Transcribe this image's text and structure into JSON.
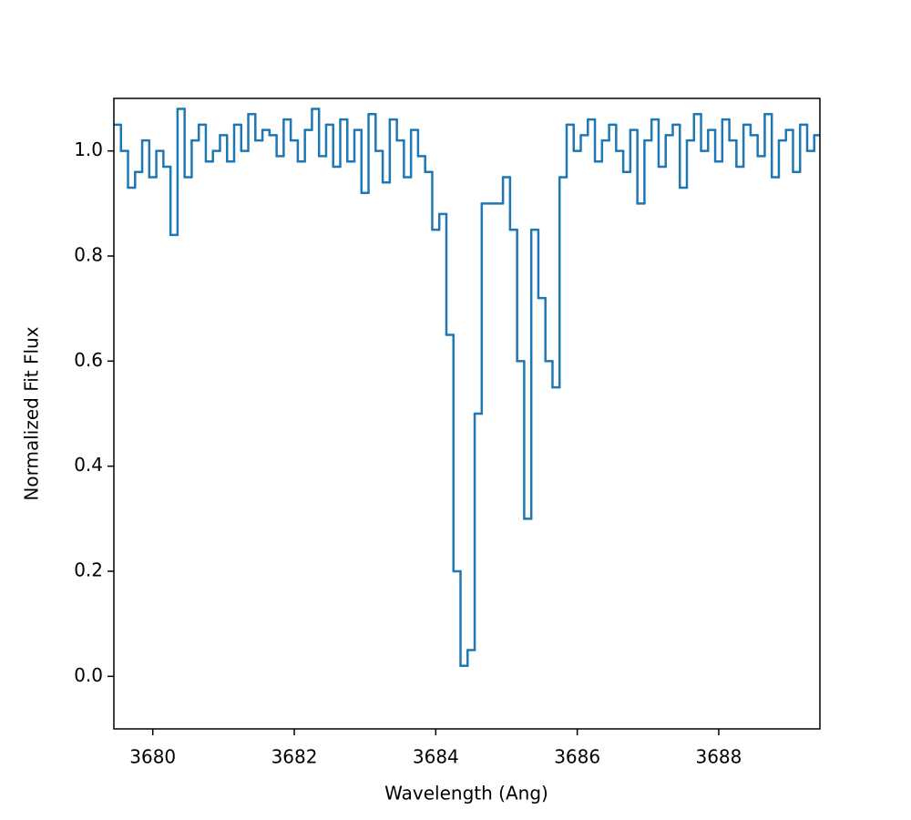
{
  "chart_data": {
    "type": "step",
    "xlabel": "Wavelength (Ang)",
    "ylabel": "Normalized Fit Flux",
    "x": [
      3679.5,
      3679.6,
      3679.7,
      3679.8,
      3679.9,
      3680.0,
      3680.1,
      3680.2,
      3680.3,
      3680.4,
      3680.5,
      3680.6,
      3680.7,
      3680.8,
      3680.9,
      3681.0,
      3681.1,
      3681.2,
      3681.3,
      3681.4,
      3681.5,
      3681.6,
      3681.7,
      3681.8,
      3681.9,
      3682.0,
      3682.1,
      3682.2,
      3682.3,
      3682.4,
      3682.5,
      3682.6,
      3682.7,
      3682.8,
      3682.9,
      3683.0,
      3683.1,
      3683.2,
      3683.3,
      3683.4,
      3683.5,
      3683.6,
      3683.7,
      3683.8,
      3683.9,
      3684.0,
      3684.1,
      3684.2,
      3684.3,
      3684.4,
      3684.5,
      3684.6,
      3684.7,
      3684.8,
      3684.9,
      3685.0,
      3685.1,
      3685.2,
      3685.3,
      3685.4,
      3685.5,
      3685.6,
      3685.7,
      3685.8,
      3685.9,
      3686.0,
      3686.1,
      3686.2,
      3686.3,
      3686.4,
      3686.5,
      3686.6,
      3686.7,
      3686.8,
      3686.9,
      3687.0,
      3687.1,
      3687.2,
      3687.3,
      3687.4,
      3687.5,
      3687.6,
      3687.7,
      3687.8,
      3687.9,
      3688.0,
      3688.1,
      3688.2,
      3688.3,
      3688.4,
      3688.5,
      3688.6,
      3688.7,
      3688.8,
      3688.9,
      3689.0,
      3689.1,
      3689.2,
      3689.3,
      3689.4
    ],
    "series": [
      {
        "color": "#1f77b4",
        "values": [
          1.05,
          1.0,
          0.93,
          0.96,
          1.02,
          0.95,
          1.0,
          0.97,
          0.84,
          1.08,
          0.95,
          1.02,
          1.05,
          0.98,
          1.0,
          1.03,
          0.98,
          1.05,
          1.0,
          1.07,
          1.02,
          1.04,
          1.03,
          0.99,
          1.06,
          1.02,
          0.98,
          1.04,
          1.08,
          0.99,
          1.05,
          0.97,
          1.06,
          0.98,
          1.04,
          0.92,
          1.07,
          1.0,
          0.94,
          1.06,
          1.02,
          0.95,
          1.04,
          0.99,
          0.96,
          0.85,
          0.88,
          0.65,
          0.2,
          0.02,
          0.05,
          0.5,
          0.9,
          0.9,
          0.9,
          0.95,
          0.85,
          0.6,
          0.3,
          0.85,
          0.72,
          0.6,
          0.55,
          0.95,
          1.05,
          1.0,
          1.03,
          1.06,
          0.98,
          1.02,
          1.05,
          1.0,
          0.96,
          1.04,
          0.9,
          1.02,
          1.06,
          0.97,
          1.03,
          1.05,
          0.93,
          1.02,
          1.07,
          1.0,
          1.04,
          0.98,
          1.06,
          1.02,
          0.97,
          1.05,
          1.03,
          0.99,
          1.07,
          0.95,
          1.02,
          1.04,
          0.96,
          1.05,
          1.0,
          1.03
        ]
      }
    ],
    "xlim": [
      3679.45,
      3689.43
    ],
    "ylim": [
      -0.1,
      1.1
    ],
    "xticks": [
      3680,
      3682,
      3684,
      3686,
      3688
    ],
    "yticks": [
      {
        "value": 0,
        "label": "0.0"
      },
      0.2,
      0.4,
      0.6,
      0.8,
      {
        "value": 1,
        "label": "1.0"
      }
    ]
  }
}
